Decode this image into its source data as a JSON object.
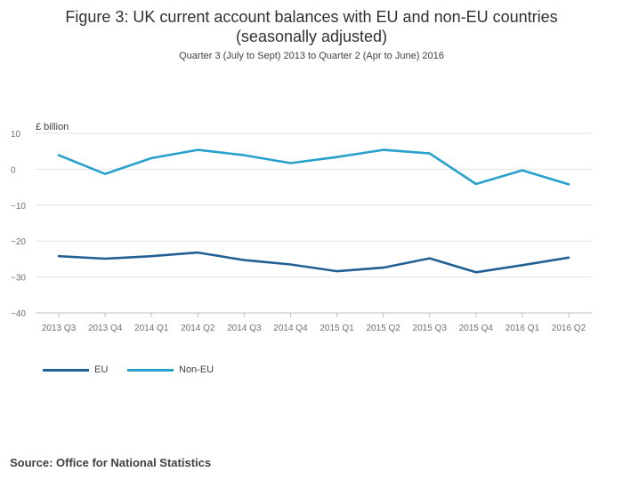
{
  "title_line1": "Figure 3: UK current account balances with EU and non-EU countries",
  "title_line2": "(seasonally adjusted)",
  "subtitle": "Quarter 3 (July to Sept) 2013 to Quarter 2 (Apr to June) 2016",
  "source": "Source: Office for National Statistics",
  "colors": {
    "eu": "#206095",
    "non_eu": "#27a0cc",
    "grid": "#e2e2e3",
    "axis_text": "#707071"
  },
  "chart_data": {
    "type": "line",
    "title": "Figure 3: UK current account balances with EU and non-EU countries (seasonally adjusted)",
    "ylabel": "£ billion",
    "xlabel": "",
    "ylim": [
      -40,
      10
    ],
    "yticks": [
      10,
      0,
      -10,
      -20,
      -30,
      -40
    ],
    "ytick_labels": [
      "10",
      "0",
      "−10",
      "−20",
      "−30",
      "−40"
    ],
    "categories": [
      "2013 Q3",
      "2013 Q4",
      "2014 Q1",
      "2014 Q2",
      "2014 Q3",
      "2014 Q4",
      "2015 Q1",
      "2015 Q2",
      "2015 Q3",
      "2015 Q4",
      "2016 Q1",
      "2016 Q2"
    ],
    "series": [
      {
        "name": "EU",
        "color": "#206095",
        "values": [
          -24.2,
          -24.9,
          -24.2,
          -23.2,
          -25.3,
          -26.5,
          -28.4,
          -27.4,
          -24.8,
          -28.7,
          -26.7,
          -24.6
        ]
      },
      {
        "name": "Non-EU",
        "color": "#27a0cc",
        "values": [
          3.9,
          -1.3,
          3.1,
          5.4,
          3.9,
          1.7,
          3.4,
          5.4,
          4.4,
          -4.1,
          -0.3,
          -4.2
        ]
      }
    ],
    "grid": true,
    "legend_position": "bottom-left"
  }
}
